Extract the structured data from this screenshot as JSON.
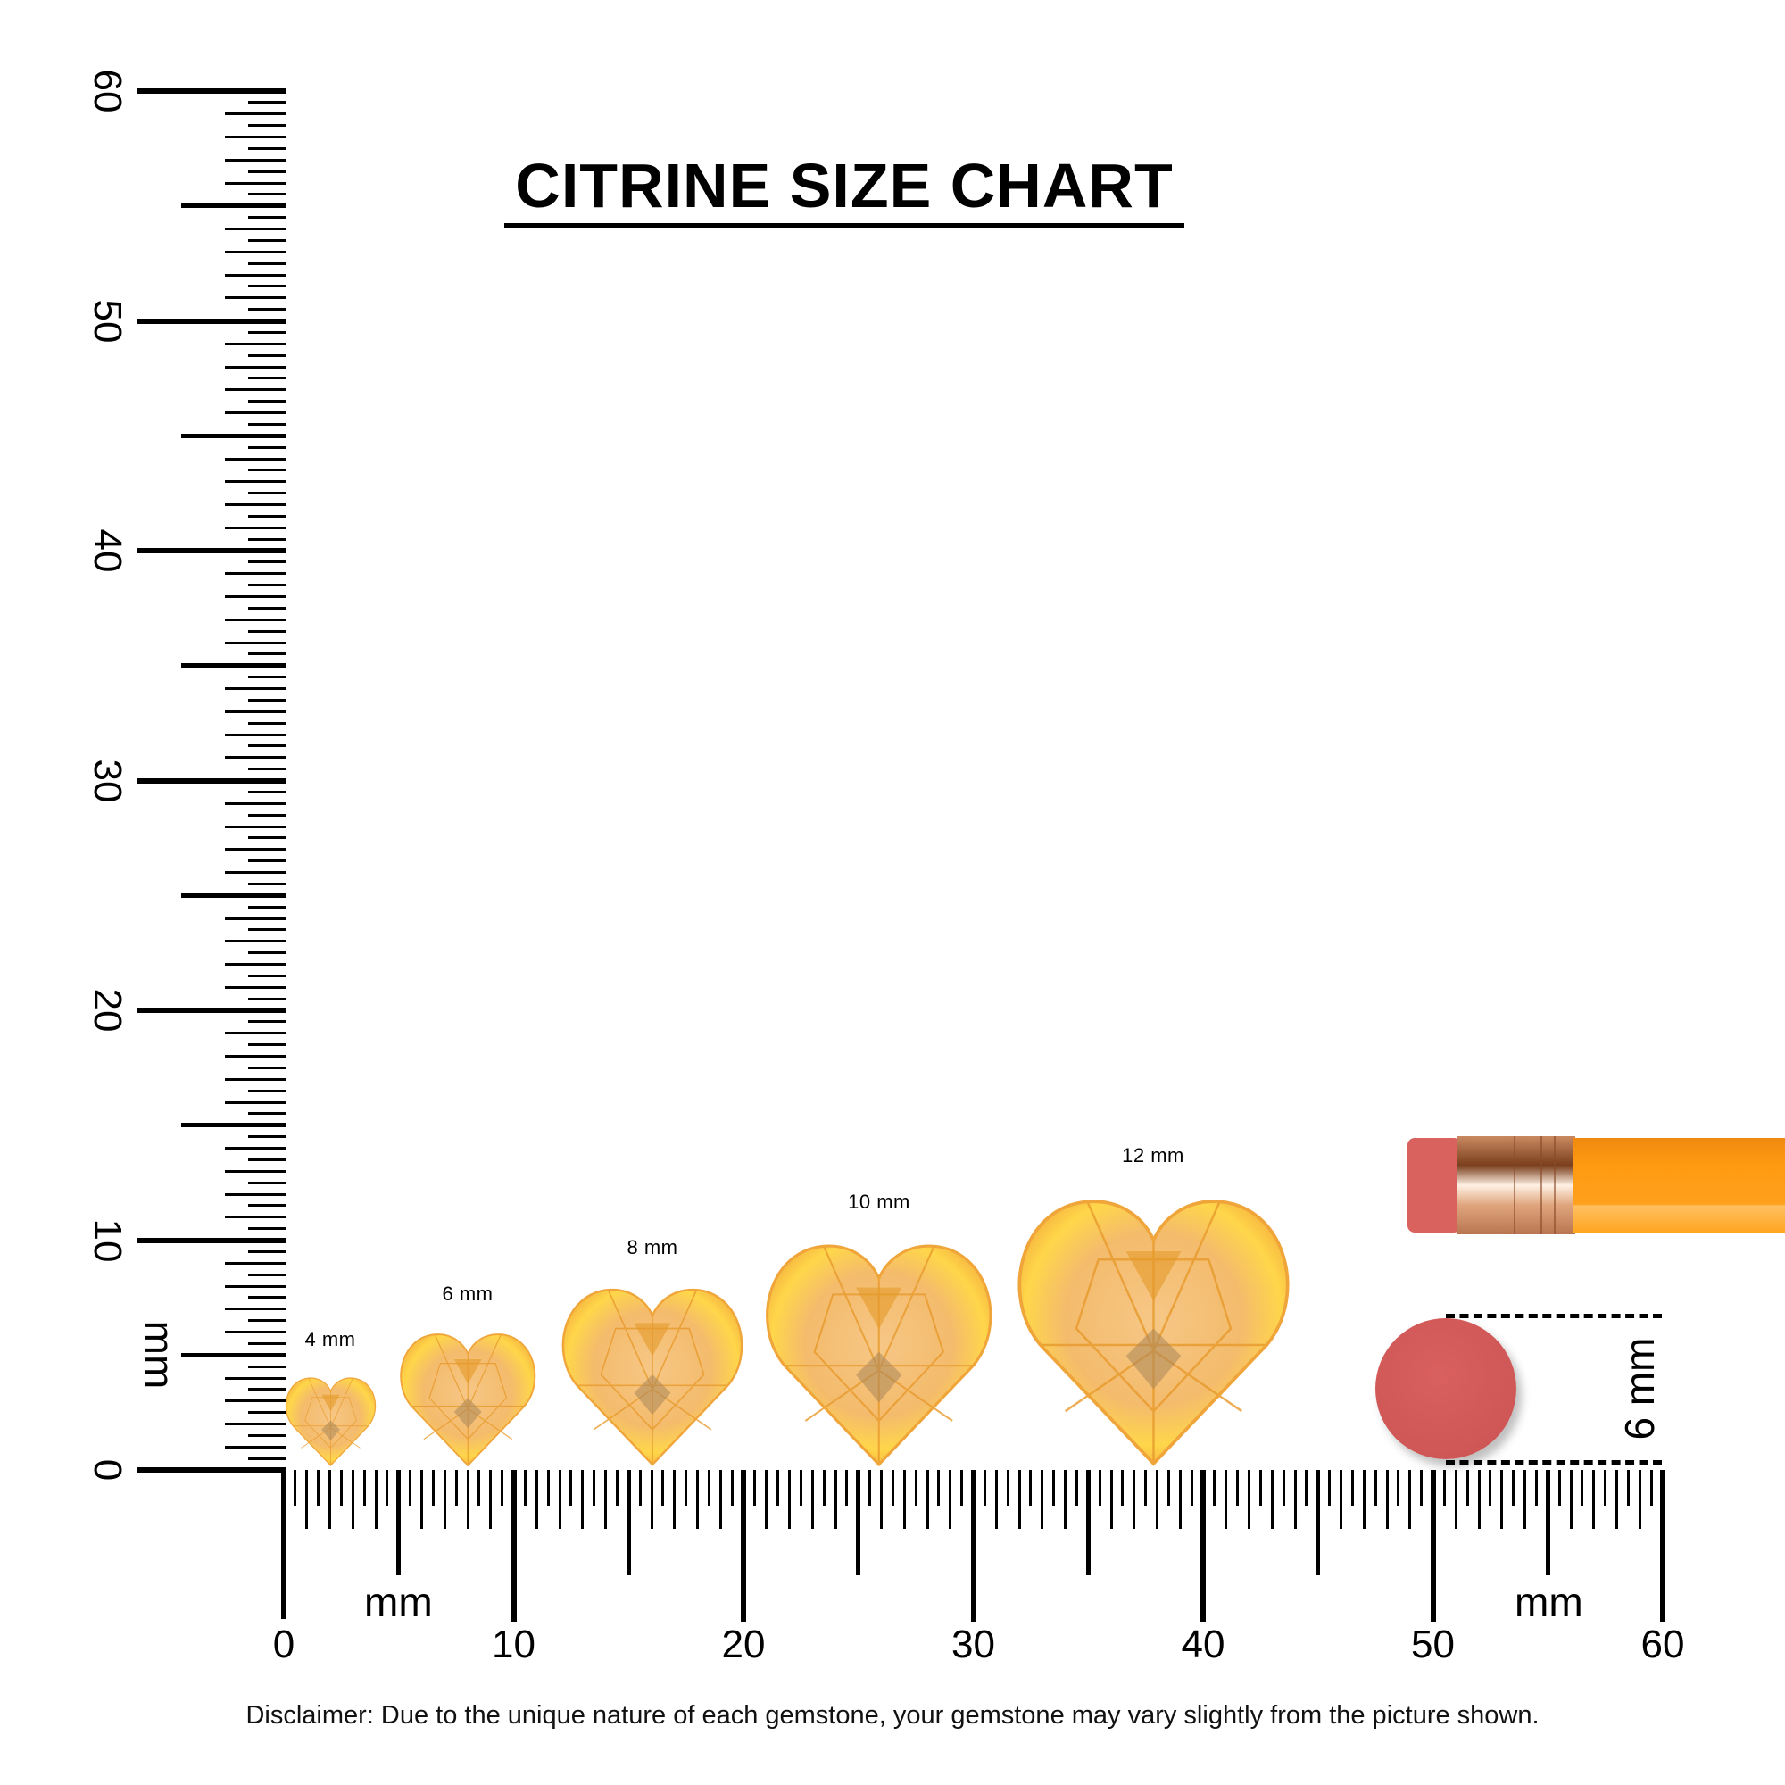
{
  "title": "CITRINE SIZE CHART",
  "ruler": {
    "unit_label": "mm",
    "x_ticks": [
      "0",
      "10",
      "20",
      "30",
      "40",
      "50",
      "60"
    ],
    "y_ticks": [
      "0",
      "10",
      "20",
      "30",
      "40",
      "50",
      "60"
    ],
    "range_mm": [
      0,
      60
    ]
  },
  "gems": [
    {
      "label": "4 mm",
      "size_mm": 4
    },
    {
      "label": "6 mm",
      "size_mm": 6
    },
    {
      "label": "8 mm",
      "size_mm": 8
    },
    {
      "label": "10 mm",
      "size_mm": 10
    },
    {
      "label": "12 mm",
      "size_mm": 12
    }
  ],
  "reference": {
    "object": "pencil-eraser",
    "label": "6 mm",
    "size_mm": 6
  },
  "colors": {
    "gem_light": "#f6c786",
    "gem_mid": "#f2a93b",
    "gem_highlight": "#ffd64a",
    "eraser": "#cf5756",
    "pencil": "#ff9a12",
    "ferrule": "#d9a07a"
  },
  "disclaimer": "Disclaimer: Due to the unique nature of each gemstone, your gemstone may vary slightly from the picture shown."
}
